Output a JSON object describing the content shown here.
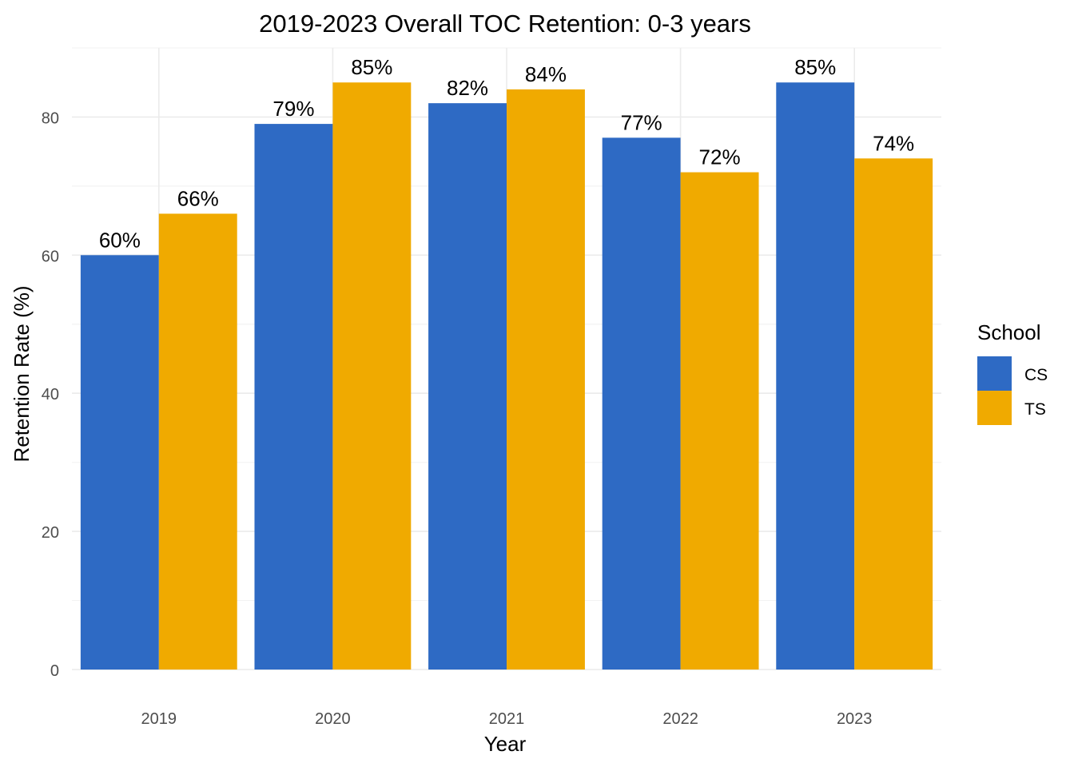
{
  "chart_data": {
    "type": "bar",
    "title": "2019-2023 Overall TOC Retention: 0-3 years",
    "xlabel": "Year",
    "ylabel": "Retention Rate (%)",
    "categories": [
      "2019",
      "2020",
      "2021",
      "2022",
      "2023"
    ],
    "series": [
      {
        "name": "CS",
        "color": "#2E6AC4",
        "values": [
          60,
          79,
          82,
          77,
          85
        ],
        "labels": [
          "60%",
          "79%",
          "82%",
          "77%",
          "85%"
        ]
      },
      {
        "name": "TS",
        "color": "#F0AA00",
        "values": [
          66,
          85,
          84,
          72,
          74
        ],
        "labels": [
          "66%",
          "85%",
          "84%",
          "72%",
          "74%"
        ]
      }
    ],
    "ylim": [
      0,
      90
    ],
    "yticks": [
      0,
      20,
      40,
      60,
      80
    ],
    "ytick_labels": [
      "0",
      "20",
      "40",
      "60",
      "80"
    ],
    "grid": true,
    "legend": {
      "title": "School",
      "position": "right"
    }
  }
}
